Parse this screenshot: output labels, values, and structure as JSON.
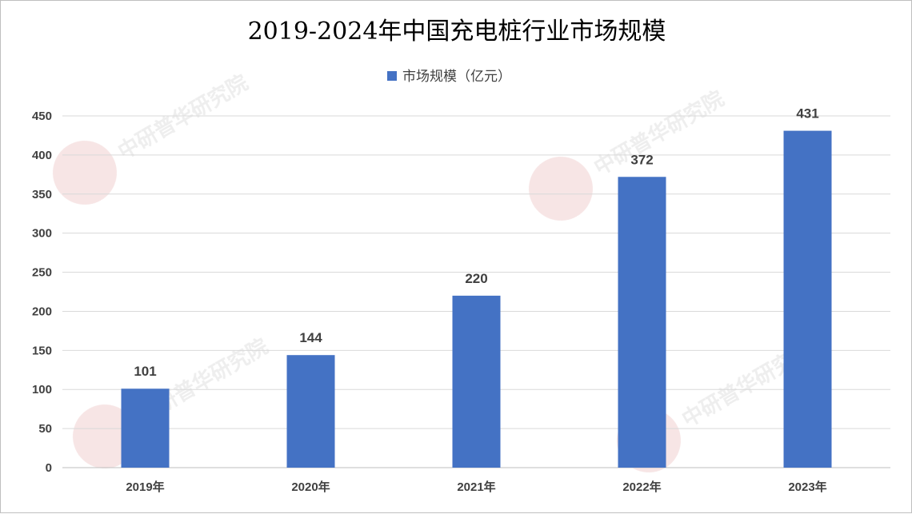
{
  "chart_data": {
    "type": "bar",
    "title": "2019-2024年中国充电桩行业市场规模",
    "categories": [
      "2019年",
      "2020年",
      "2021年",
      "2022年",
      "2023年"
    ],
    "series": [
      {
        "name": "市场规模（亿元）",
        "values": [
          101,
          144,
          220,
          372,
          431
        ],
        "color": "#4472C4"
      }
    ],
    "ylim": [
      0,
      450
    ],
    "yticks": [
      0,
      50,
      100,
      150,
      200,
      250,
      300,
      350,
      400,
      450
    ],
    "grid": true,
    "legend": "top-center",
    "data_labels": true
  },
  "colors": {
    "bar": "#4472C4",
    "grid": "#d9d9d9",
    "text": "#404040"
  }
}
